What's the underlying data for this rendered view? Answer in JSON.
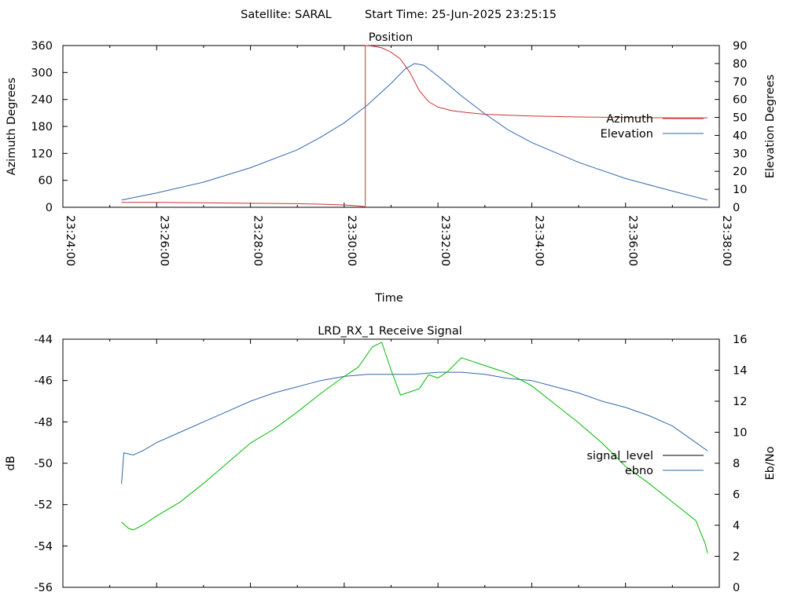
{
  "header": {
    "satellite": "Satellite: SARAL",
    "start_time": "Start Time: 25-Jun-2025 23:25:15"
  },
  "chart_data": [
    {
      "type": "line",
      "title": "Position",
      "xlabel": "Time",
      "ylabel": "Azimuth Degrees",
      "y2label": "Elevation Degrees",
      "x_ticks": [
        "23:24:00",
        "23:26:00",
        "23:28:00",
        "23:30:00",
        "23:32:00",
        "23:34:00",
        "23:36:00",
        "23:38:00"
      ],
      "xlim_minutes": [
        0,
        14
      ],
      "ylim": [
        0,
        360
      ],
      "y_ticks": [
        "0",
        "60",
        "120",
        "180",
        "240",
        "300",
        "360"
      ],
      "y2lim": [
        0,
        90
      ],
      "y2_ticks": [
        "0",
        "10",
        "20",
        "30",
        "40",
        "50",
        "60",
        "70",
        "80",
        "90"
      ],
      "legend_position": "right",
      "series": [
        {
          "name": "Azimuth",
          "axis": "y",
          "color": "#cc3333",
          "x_minutes": [
            1.25,
            2.0,
            3.0,
            4.0,
            5.0,
            5.5,
            6.0,
            6.3,
            6.45,
            6.45,
            6.6,
            6.8,
            7.0,
            7.2,
            7.4,
            7.6,
            7.8,
            8.0,
            8.3,
            8.6,
            9.0,
            9.5,
            10.0,
            11.0,
            12.0,
            13.0,
            13.75
          ],
          "values": [
            11,
            11,
            10,
            9,
            8,
            7,
            5,
            3,
            1,
            360,
            359,
            355,
            345,
            330,
            300,
            260,
            235,
            223,
            215,
            211,
            207,
            205,
            203,
            201,
            200,
            199,
            199
          ]
        },
        {
          "name": "Elevation",
          "axis": "y2",
          "color": "#3366aa",
          "x_minutes": [
            1.25,
            2.0,
            3.0,
            4.0,
            5.0,
            5.5,
            6.0,
            6.5,
            7.0,
            7.3,
            7.5,
            7.7,
            8.0,
            8.5,
            9.0,
            9.5,
            10.0,
            11.0,
            12.0,
            13.0,
            13.75
          ],
          "values": [
            4,
            8,
            14,
            22,
            32,
            39,
            47,
            57,
            69,
            77,
            80,
            79,
            73,
            62,
            52,
            43,
            36,
            25,
            16,
            9,
            4
          ]
        }
      ]
    },
    {
      "type": "line",
      "title": "LRD_RX_1 Receive Signal",
      "ylabel": "dB",
      "y2label": "Eb/No",
      "xlim_minutes": [
        0,
        14
      ],
      "ylim": [
        -56,
        -44
      ],
      "y_ticks": [
        "-56",
        "-54",
        "-52",
        "-50",
        "-48",
        "-46",
        "-44"
      ],
      "y2lim": [
        0,
        16
      ],
      "y2_ticks": [
        "0",
        "2",
        "4",
        "6",
        "8",
        "10",
        "12",
        "14",
        "16"
      ],
      "legend_position": "right",
      "series": [
        {
          "name": "signal_level",
          "axis": "y",
          "color": "#3366aa",
          "x_minutes": [
            1.25,
            1.3,
            1.5,
            1.7,
            2.0,
            2.5,
            3.0,
            3.5,
            4.0,
            4.5,
            5.0,
            5.5,
            6.0,
            6.5,
            7.0,
            7.5,
            8.0,
            8.5,
            9.0,
            9.5,
            10.0,
            10.5,
            11.0,
            11.5,
            12.0,
            12.5,
            13.0,
            13.5,
            13.75
          ],
          "values": [
            -51,
            -49.5,
            -49.6,
            -49.4,
            -49.0,
            -48.5,
            -48.0,
            -47.5,
            -47.0,
            -46.6,
            -46.3,
            -46.0,
            -45.8,
            -45.7,
            -45.7,
            -45.7,
            -45.6,
            -45.6,
            -45.7,
            -45.9,
            -46.0,
            -46.3,
            -46.6,
            -47.0,
            -47.3,
            -47.7,
            -48.2,
            -49.0,
            -49.4
          ]
        },
        {
          "name": "ebno",
          "axis": "y2",
          "color": "#00bb00",
          "x_minutes": [
            1.25,
            1.4,
            1.5,
            1.7,
            2.0,
            2.5,
            3.0,
            3.5,
            4.0,
            4.5,
            5.0,
            5.5,
            6.0,
            6.3,
            6.6,
            6.8,
            7.0,
            7.2,
            7.4,
            7.6,
            7.8,
            8.0,
            8.2,
            8.5,
            9.0,
            9.5,
            10.0,
            10.5,
            11.0,
            11.5,
            12.0,
            12.5,
            13.0,
            13.5,
            13.7,
            13.75
          ],
          "values": [
            4.2,
            3.8,
            3.7,
            4.0,
            4.6,
            5.5,
            6.7,
            8.0,
            9.3,
            10.2,
            11.3,
            12.5,
            13.6,
            14.2,
            15.5,
            15.8,
            14.0,
            12.4,
            12.6,
            12.8,
            13.7,
            13.5,
            13.9,
            14.8,
            14.3,
            13.8,
            13.0,
            11.8,
            10.6,
            9.3,
            7.8,
            6.7,
            5.5,
            4.3,
            2.8,
            2.2
          ]
        }
      ]
    }
  ]
}
